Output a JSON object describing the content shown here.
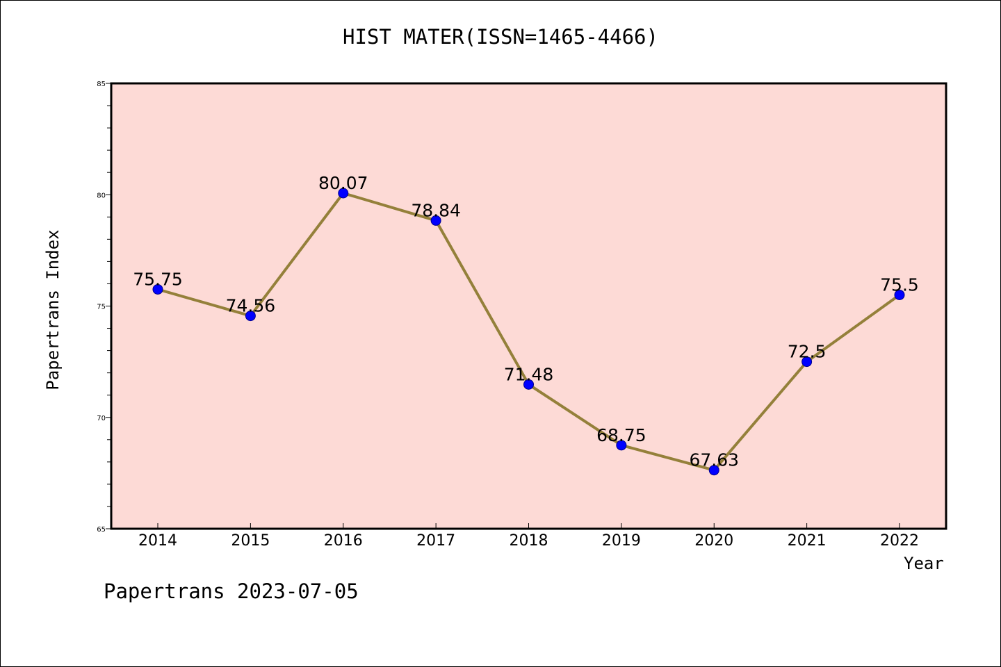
{
  "chart_data": {
    "type": "line",
    "title": "HIST MATER(ISSN=1465-4466)",
    "xlabel": "Year",
    "ylabel": "Papertrans Index",
    "x": [
      "2014",
      "2015",
      "2016",
      "2017",
      "2018",
      "2019",
      "2020",
      "2021",
      "2022"
    ],
    "series": [
      {
        "values": [
          75.75,
          74.56,
          80.07,
          78.84,
          71.48,
          68.75,
          67.63,
          72.5,
          75.5
        ],
        "labels": [
          "75.75",
          "74.56",
          "80.07",
          "78.84",
          "71.48",
          "68.75",
          "67.63",
          "72.5",
          "75.5"
        ]
      }
    ],
    "ylim": [
      65,
      85
    ],
    "yticks": [
      "65",
      "70",
      "75",
      "80",
      "85"
    ],
    "grid": false,
    "colors": {
      "plot_background": "#fddad6",
      "line": "#94803a",
      "marker": "#0000ff"
    }
  },
  "footer": "Papertrans 2023-07-05"
}
